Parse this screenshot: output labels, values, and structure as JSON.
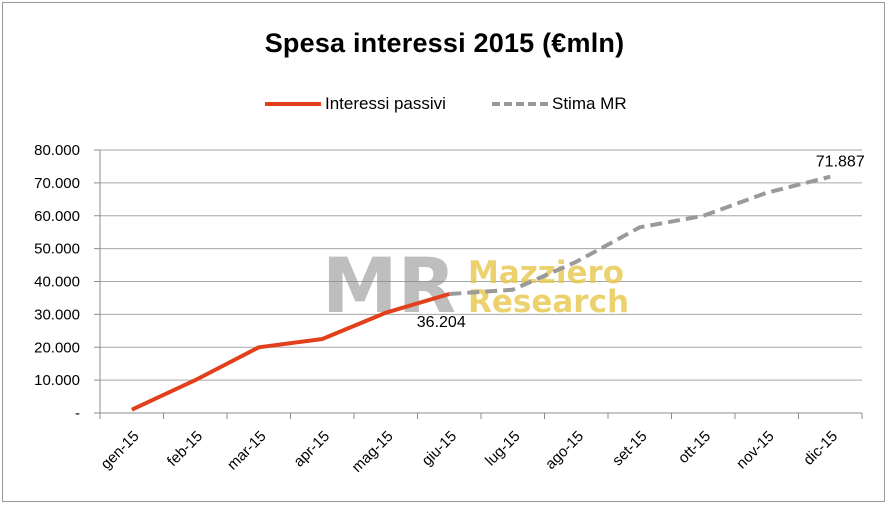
{
  "chart_data": {
    "type": "line",
    "title": "Spesa interessi 2015 (€mln)",
    "categories": [
      "gen-15",
      "feb-15",
      "mar-15",
      "apr-15",
      "mag-15",
      "giu-15",
      "lug-15",
      "ago-15",
      "set-15",
      "ott-15",
      "nov-15",
      "dic-15"
    ],
    "series": [
      {
        "name": "Interessi passivi",
        "color": "#e2401c",
        "style": "solid",
        "values": [
          1000,
          10000,
          20000,
          22500,
          30500,
          36204,
          null,
          null,
          null,
          null,
          null,
          null
        ]
      },
      {
        "name": "Stima MR",
        "color": "#9a9a9a",
        "style": "dashed",
        "values": [
          null,
          null,
          null,
          null,
          null,
          36204,
          37500,
          46000,
          56500,
          60000,
          67000,
          71887
        ]
      }
    ],
    "yticks": [
      "-",
      "10.000",
      "20.000",
      "30.000",
      "40.000",
      "50.000",
      "60.000",
      "70.000",
      "80.000"
    ],
    "ylim": [
      0,
      80000
    ],
    "grid": true,
    "legend_position": "top",
    "data_labels": [
      {
        "series": 0,
        "index": 5,
        "text": "36.204"
      },
      {
        "series": 1,
        "index": 11,
        "text": "71.887"
      }
    ],
    "watermark": {
      "logo": "MR",
      "text_line1": "Mazziero",
      "text_line2": "Research"
    }
  }
}
